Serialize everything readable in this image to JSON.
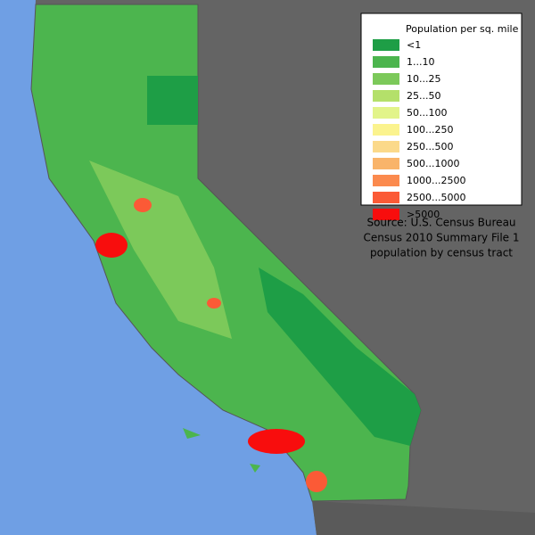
{
  "legend": {
    "title": "Population per sq. mile",
    "items": [
      {
        "label": "<1",
        "color": "#1e9e46"
      },
      {
        "label": "1...10",
        "color": "#4cb54e"
      },
      {
        "label": "10...25",
        "color": "#7cc95a"
      },
      {
        "label": "25...50",
        "color": "#b4e06a"
      },
      {
        "label": "50...100",
        "color": "#e2f48a"
      },
      {
        "label": "100...250",
        "color": "#fbf38e"
      },
      {
        "label": "250...500",
        "color": "#fbd98a"
      },
      {
        "label": "500...1000",
        "color": "#f9b46a"
      },
      {
        "label": "1000...2500",
        "color": "#fb8a4e"
      },
      {
        "label": "2500...5000",
        "color": "#fb5a36"
      },
      {
        "label": ">5000",
        "color": "#f80d0d"
      }
    ]
  },
  "source": [
    "Source: U.S. Census Bureau",
    "Census 2010 Summary File 1",
    "population by census tract"
  ]
}
